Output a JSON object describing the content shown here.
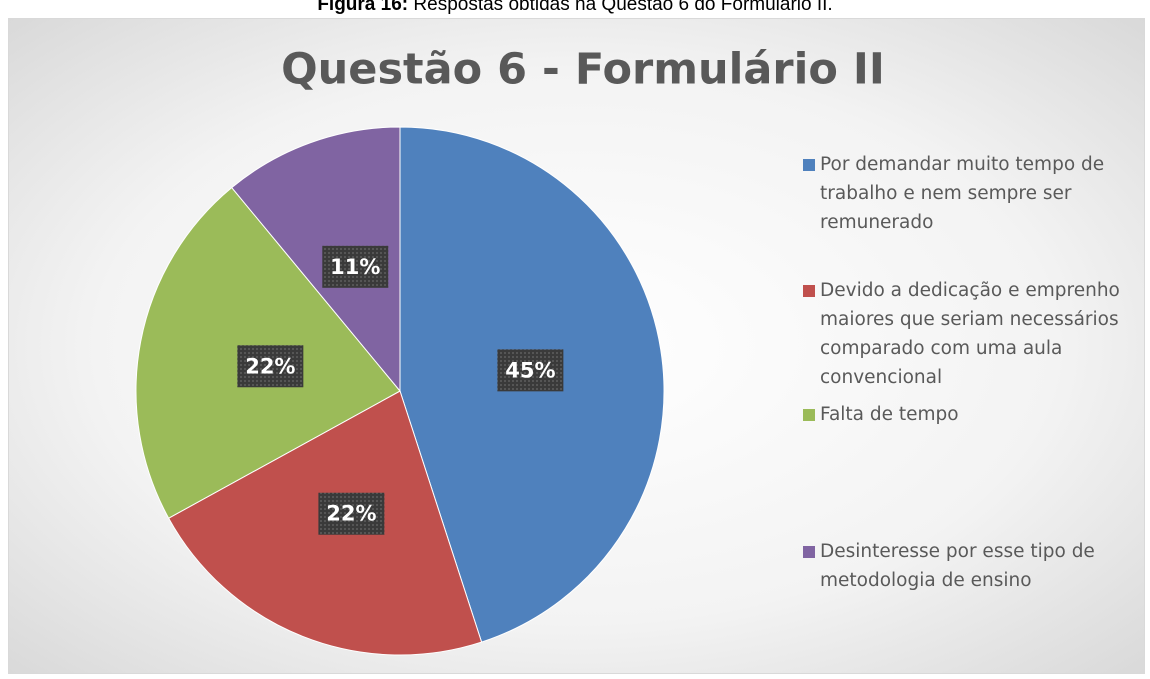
{
  "caption": {
    "label": "Figura 16:",
    "text": "Respostas obtidas na Questão 6 do Formulário II."
  },
  "chart_data": {
    "type": "pie",
    "title": "Questão  6 - Formulário II",
    "categories": [
      "Por demandar muito tempo de trabalho e nem sempre ser remunerado",
      "Devido a dedicação e emprenho maiores que seriam necessários comparado com uma aula convencional",
      "Falta de tempo",
      "Desinteresse por esse tipo de metodologia de ensino"
    ],
    "values": [
      45,
      22,
      22,
      11
    ],
    "value_labels": [
      "45%",
      "22%",
      "22%",
      "11%"
    ],
    "colors": [
      "#4f81bd",
      "#c0504d",
      "#9bbb59",
      "#8064a2"
    ],
    "legend": "right"
  }
}
